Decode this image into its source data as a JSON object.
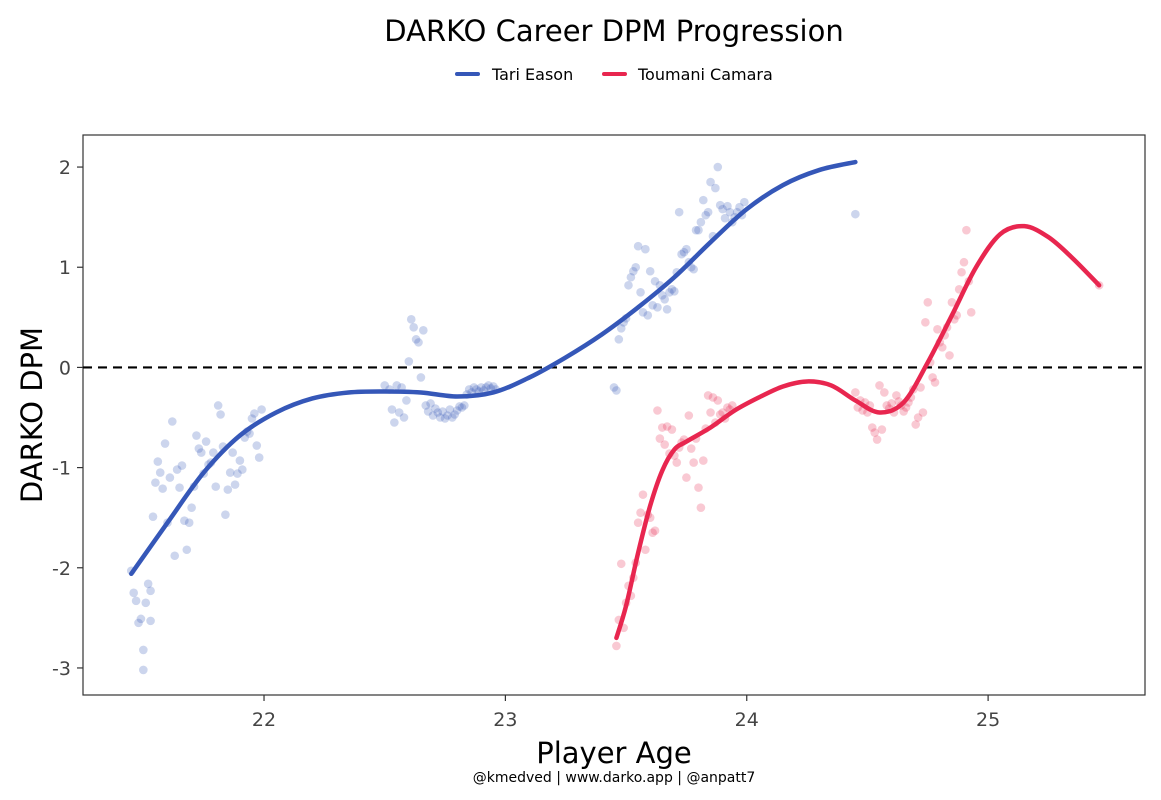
{
  "chart_data": {
    "type": "scatter",
    "title": "DARKO Career DPM Progression",
    "xlabel": "Player Age",
    "ylabel": "DARKO DPM",
    "caption": "@kmedved | www.darko.app | @anpatt7",
    "xlim": [
      21.25,
      25.65
    ],
    "ylim": [
      -3.27,
      2.32
    ],
    "xticks": [
      22,
      23,
      24,
      25
    ],
    "yticks": [
      -3,
      -2,
      -1,
      0,
      1,
      2
    ],
    "reference_line": {
      "y": 0,
      "style": "dashed",
      "color": "#000000"
    },
    "grid": false,
    "legend_position": "top",
    "series": [
      {
        "name": "Tari Eason",
        "color": "#3557b8",
        "trend": [
          [
            21.45,
            -2.06
          ],
          [
            21.6,
            -1.55
          ],
          [
            21.75,
            -1.05
          ],
          [
            21.9,
            -0.68
          ],
          [
            22.05,
            -0.45
          ],
          [
            22.2,
            -0.31
          ],
          [
            22.35,
            -0.25
          ],
          [
            22.5,
            -0.24
          ],
          [
            22.65,
            -0.25
          ],
          [
            22.8,
            -0.29
          ],
          [
            22.95,
            -0.25
          ],
          [
            23.1,
            -0.1
          ],
          [
            23.25,
            0.1
          ],
          [
            23.4,
            0.33
          ],
          [
            23.55,
            0.6
          ],
          [
            23.7,
            0.9
          ],
          [
            23.85,
            1.25
          ],
          [
            24.0,
            1.58
          ],
          [
            24.15,
            1.82
          ],
          [
            24.3,
            1.97
          ],
          [
            24.45,
            2.05
          ]
        ],
        "points": [
          [
            21.45,
            -2.03
          ],
          [
            21.46,
            -2.25
          ],
          [
            21.47,
            -2.33
          ],
          [
            21.48,
            -2.55
          ],
          [
            21.49,
            -2.51
          ],
          [
            21.5,
            -2.82
          ],
          [
            21.5,
            -3.02
          ],
          [
            21.51,
            -2.35
          ],
          [
            21.52,
            -2.16
          ],
          [
            21.53,
            -2.23
          ],
          [
            21.53,
            -2.53
          ],
          [
            21.54,
            -1.49
          ],
          [
            21.55,
            -1.15
          ],
          [
            21.56,
            -0.94
          ],
          [
            21.57,
            -1.05
          ],
          [
            21.58,
            -1.21
          ],
          [
            21.59,
            -0.76
          ],
          [
            21.6,
            -1.55
          ],
          [
            21.61,
            -1.1
          ],
          [
            21.62,
            -0.54
          ],
          [
            21.63,
            -1.88
          ],
          [
            21.64,
            -1.02
          ],
          [
            21.65,
            -1.2
          ],
          [
            21.66,
            -0.98
          ],
          [
            21.67,
            -1.53
          ],
          [
            21.68,
            -1.82
          ],
          [
            21.69,
            -1.55
          ],
          [
            21.7,
            -1.4
          ],
          [
            21.71,
            -1.19
          ],
          [
            21.72,
            -0.68
          ],
          [
            21.73,
            -0.81
          ],
          [
            21.74,
            -0.85
          ],
          [
            21.75,
            -1.06
          ],
          [
            21.76,
            -0.74
          ],
          [
            21.77,
            -0.97
          ],
          [
            21.78,
            -0.95
          ],
          [
            21.79,
            -0.85
          ],
          [
            21.8,
            -1.19
          ],
          [
            21.81,
            -0.38
          ],
          [
            21.82,
            -0.47
          ],
          [
            21.83,
            -0.79
          ],
          [
            21.84,
            -1.47
          ],
          [
            21.85,
            -1.22
          ],
          [
            21.86,
            -1.05
          ],
          [
            21.87,
            -0.85
          ],
          [
            21.88,
            -1.17
          ],
          [
            21.89,
            -1.06
          ],
          [
            21.9,
            -0.93
          ],
          [
            21.91,
            -1.02
          ],
          [
            21.92,
            -0.7
          ],
          [
            21.93,
            -0.64
          ],
          [
            21.94,
            -0.66
          ],
          [
            21.95,
            -0.51
          ],
          [
            21.96,
            -0.46
          ],
          [
            21.97,
            -0.78
          ],
          [
            21.98,
            -0.9
          ],
          [
            21.99,
            -0.42
          ],
          [
            22.5,
            -0.18
          ],
          [
            22.52,
            -0.22
          ],
          [
            22.53,
            -0.42
          ],
          [
            22.54,
            -0.55
          ],
          [
            22.55,
            -0.18
          ],
          [
            22.56,
            -0.45
          ],
          [
            22.57,
            -0.2
          ],
          [
            22.58,
            -0.5
          ],
          [
            22.59,
            -0.33
          ],
          [
            22.6,
            0.06
          ],
          [
            22.61,
            0.48
          ],
          [
            22.62,
            0.4
          ],
          [
            22.63,
            0.28
          ],
          [
            22.64,
            0.25
          ],
          [
            22.65,
            -0.1
          ],
          [
            22.66,
            0.37
          ],
          [
            22.67,
            -0.38
          ],
          [
            22.68,
            -0.44
          ],
          [
            22.69,
            -0.36
          ],
          [
            22.7,
            -0.48
          ],
          [
            22.71,
            -0.41
          ],
          [
            22.72,
            -0.45
          ],
          [
            22.73,
            -0.5
          ],
          [
            22.74,
            -0.44
          ],
          [
            22.75,
            -0.51
          ],
          [
            22.76,
            -0.48
          ],
          [
            22.77,
            -0.42
          ],
          [
            22.78,
            -0.5
          ],
          [
            22.79,
            -0.47
          ],
          [
            22.8,
            -0.43
          ],
          [
            22.81,
            -0.39
          ],
          [
            22.82,
            -0.4
          ],
          [
            22.83,
            -0.38
          ],
          [
            22.84,
            -0.27
          ],
          [
            22.85,
            -0.22
          ],
          [
            22.86,
            -0.25
          ],
          [
            22.87,
            -0.2
          ],
          [
            22.88,
            -0.22
          ],
          [
            22.89,
            -0.24
          ],
          [
            22.9,
            -0.2
          ],
          [
            22.91,
            -0.23
          ],
          [
            22.92,
            -0.2
          ],
          [
            22.93,
            -0.18
          ],
          [
            22.94,
            -0.21
          ],
          [
            22.95,
            -0.19
          ],
          [
            22.96,
            -0.22
          ],
          [
            23.45,
            -0.2
          ],
          [
            23.46,
            -0.23
          ],
          [
            23.47,
            0.28
          ],
          [
            23.48,
            0.39
          ],
          [
            23.49,
            0.45
          ],
          [
            23.5,
            0.49
          ],
          [
            23.51,
            0.82
          ],
          [
            23.52,
            0.9
          ],
          [
            23.53,
            0.96
          ],
          [
            23.54,
            1.0
          ],
          [
            23.55,
            1.21
          ],
          [
            23.56,
            0.75
          ],
          [
            23.57,
            0.55
          ],
          [
            23.58,
            1.18
          ],
          [
            23.59,
            0.52
          ],
          [
            23.6,
            0.96
          ],
          [
            23.61,
            0.62
          ],
          [
            23.62,
            0.86
          ],
          [
            23.63,
            0.6
          ],
          [
            23.64,
            0.82
          ],
          [
            23.65,
            0.72
          ],
          [
            23.66,
            0.68
          ],
          [
            23.67,
            0.58
          ],
          [
            23.68,
            0.75
          ],
          [
            23.69,
            0.78
          ],
          [
            23.7,
            0.76
          ],
          [
            23.71,
            0.95
          ],
          [
            23.72,
            1.55
          ],
          [
            23.73,
            1.13
          ],
          [
            23.74,
            1.15
          ],
          [
            23.75,
            1.18
          ],
          [
            23.76,
            1.05
          ],
          [
            23.77,
            1.0
          ],
          [
            23.78,
            0.98
          ],
          [
            23.79,
            1.37
          ],
          [
            23.8,
            1.37
          ],
          [
            23.81,
            1.45
          ],
          [
            23.82,
            1.67
          ],
          [
            23.83,
            1.52
          ],
          [
            23.84,
            1.55
          ],
          [
            23.85,
            1.85
          ],
          [
            23.86,
            1.31
          ],
          [
            23.87,
            1.79
          ],
          [
            23.88,
            2.0
          ],
          [
            23.89,
            1.62
          ],
          [
            23.9,
            1.58
          ],
          [
            23.91,
            1.49
          ],
          [
            23.92,
            1.61
          ],
          [
            23.93,
            1.55
          ],
          [
            23.94,
            1.45
          ],
          [
            23.95,
            1.5
          ],
          [
            23.96,
            1.55
          ],
          [
            23.97,
            1.6
          ],
          [
            23.98,
            1.52
          ],
          [
            23.99,
            1.65
          ],
          [
            24.45,
            1.53
          ]
        ]
      },
      {
        "name": "Toumani Camara",
        "color": "#e8264f",
        "trend": [
          [
            23.46,
            -2.7
          ],
          [
            23.5,
            -2.38
          ],
          [
            23.55,
            -1.85
          ],
          [
            23.6,
            -1.38
          ],
          [
            23.65,
            -1.03
          ],
          [
            23.7,
            -0.82
          ],
          [
            23.75,
            -0.74
          ],
          [
            23.85,
            -0.6
          ],
          [
            23.95,
            -0.43
          ],
          [
            24.05,
            -0.3
          ],
          [
            24.15,
            -0.19
          ],
          [
            24.25,
            -0.14
          ],
          [
            24.35,
            -0.18
          ],
          [
            24.45,
            -0.33
          ],
          [
            24.55,
            -0.45
          ],
          [
            24.65,
            -0.35
          ],
          [
            24.75,
            0.05
          ],
          [
            24.85,
            0.52
          ],
          [
            24.95,
            1.0
          ],
          [
            25.05,
            1.33
          ],
          [
            25.15,
            1.41
          ],
          [
            25.25,
            1.3
          ],
          [
            25.35,
            1.09
          ],
          [
            25.46,
            0.82
          ]
        ],
        "points": [
          [
            23.46,
            -2.78
          ],
          [
            23.47,
            -2.52
          ],
          [
            23.48,
            -1.96
          ],
          [
            23.49,
            -2.6
          ],
          [
            23.5,
            -2.35
          ],
          [
            23.51,
            -2.18
          ],
          [
            23.52,
            -2.28
          ],
          [
            23.53,
            -2.1
          ],
          [
            23.54,
            -1.95
          ],
          [
            23.55,
            -1.55
          ],
          [
            23.56,
            -1.45
          ],
          [
            23.57,
            -1.27
          ],
          [
            23.58,
            -1.82
          ],
          [
            23.59,
            -1.47
          ],
          [
            23.6,
            -1.5
          ],
          [
            23.61,
            -1.65
          ],
          [
            23.62,
            -1.63
          ],
          [
            23.63,
            -0.43
          ],
          [
            23.64,
            -0.71
          ],
          [
            23.65,
            -0.6
          ],
          [
            23.66,
            -0.77
          ],
          [
            23.67,
            -0.59
          ],
          [
            23.68,
            -0.86
          ],
          [
            23.69,
            -0.62
          ],
          [
            23.7,
            -0.88
          ],
          [
            23.71,
            -0.95
          ],
          [
            23.72,
            -0.8
          ],
          [
            23.73,
            -0.75
          ],
          [
            23.74,
            -0.72
          ],
          [
            23.75,
            -1.1
          ],
          [
            23.76,
            -0.48
          ],
          [
            23.77,
            -0.81
          ],
          [
            23.78,
            -0.95
          ],
          [
            23.79,
            -0.71
          ],
          [
            23.8,
            -1.2
          ],
          [
            23.81,
            -1.4
          ],
          [
            23.82,
            -0.93
          ],
          [
            23.83,
            -0.61
          ],
          [
            23.84,
            -0.28
          ],
          [
            23.85,
            -0.45
          ],
          [
            23.86,
            -0.3
          ],
          [
            23.87,
            -0.55
          ],
          [
            23.88,
            -0.33
          ],
          [
            23.89,
            -0.47
          ],
          [
            23.9,
            -0.45
          ],
          [
            23.91,
            -0.51
          ],
          [
            23.92,
            -0.4
          ],
          [
            23.93,
            -0.42
          ],
          [
            23.94,
            -0.38
          ],
          [
            24.45,
            -0.25
          ],
          [
            24.46,
            -0.4
          ],
          [
            24.47,
            -0.33
          ],
          [
            24.48,
            -0.43
          ],
          [
            24.49,
            -0.35
          ],
          [
            24.5,
            -0.45
          ],
          [
            24.51,
            -0.38
          ],
          [
            24.52,
            -0.6
          ],
          [
            24.53,
            -0.65
          ],
          [
            24.54,
            -0.72
          ],
          [
            24.55,
            -0.18
          ],
          [
            24.56,
            -0.62
          ],
          [
            24.57,
            -0.25
          ],
          [
            24.58,
            -0.38
          ],
          [
            24.59,
            -0.41
          ],
          [
            24.6,
            -0.36
          ],
          [
            24.61,
            -0.45
          ],
          [
            24.62,
            -0.28
          ],
          [
            24.63,
            -0.34
          ],
          [
            24.64,
            -0.38
          ],
          [
            24.65,
            -0.44
          ],
          [
            24.66,
            -0.4
          ],
          [
            24.67,
            -0.35
          ],
          [
            24.68,
            -0.3
          ],
          [
            24.69,
            -0.22
          ],
          [
            24.7,
            -0.57
          ],
          [
            24.71,
            -0.5
          ],
          [
            24.72,
            -0.2
          ],
          [
            24.73,
            -0.45
          ],
          [
            24.74,
            0.45
          ],
          [
            24.75,
            0.65
          ],
          [
            24.76,
            0.05
          ],
          [
            24.77,
            -0.1
          ],
          [
            24.78,
            -0.15
          ],
          [
            24.79,
            0.38
          ],
          [
            24.8,
            0.25
          ],
          [
            24.81,
            0.2
          ],
          [
            24.82,
            0.32
          ],
          [
            24.83,
            0.4
          ],
          [
            24.84,
            0.12
          ],
          [
            24.85,
            0.65
          ],
          [
            24.86,
            0.48
          ],
          [
            24.87,
            0.52
          ],
          [
            24.88,
            0.78
          ],
          [
            24.89,
            0.95
          ],
          [
            24.9,
            1.05
          ],
          [
            24.91,
            1.37
          ],
          [
            24.92,
            0.86
          ],
          [
            24.93,
            0.55
          ],
          [
            25.46,
            0.82
          ]
        ]
      }
    ]
  }
}
